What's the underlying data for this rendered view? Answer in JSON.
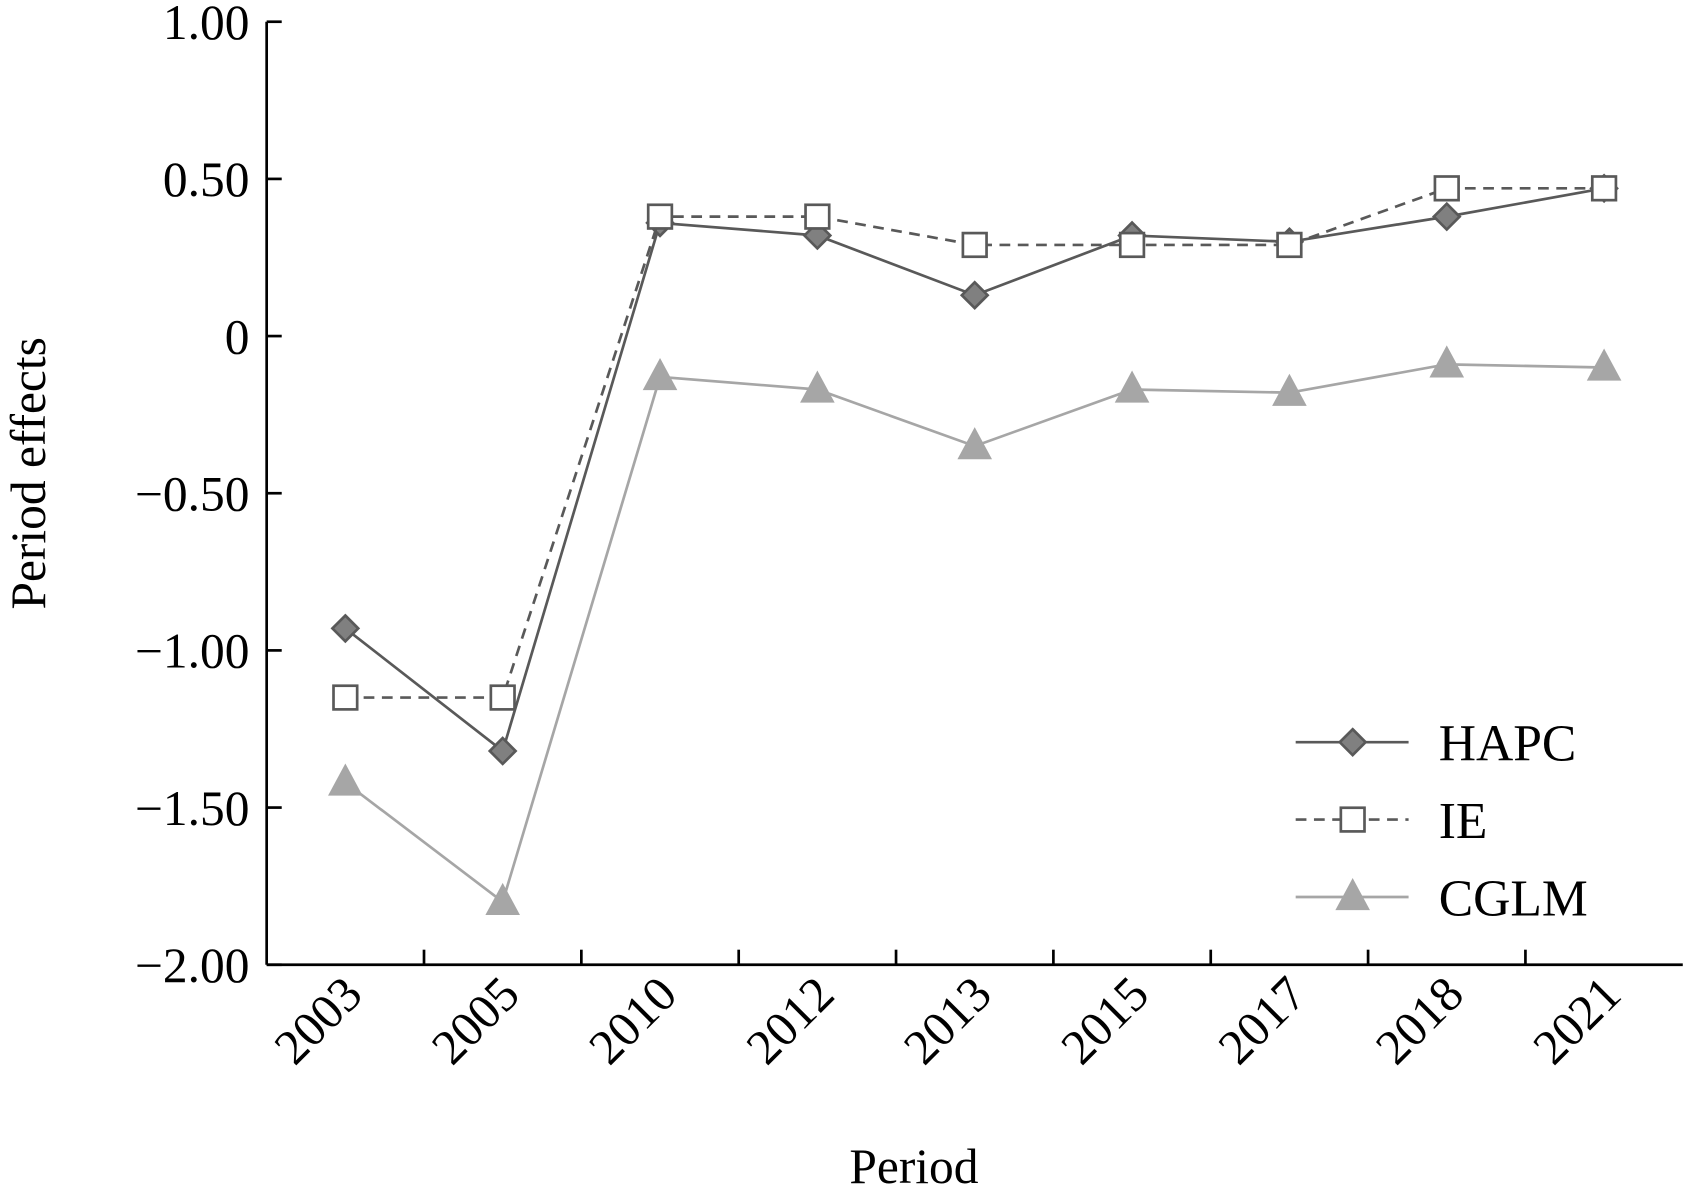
{
  "chart_data": {
    "type": "line",
    "title": "",
    "xlabel": "Period",
    "ylabel": "Period effects",
    "categories": [
      "2003",
      "2005",
      "2010",
      "2012",
      "2013",
      "2015",
      "2017",
      "2018",
      "2021"
    ],
    "ylim": [
      -2.0,
      1.0
    ],
    "yticks": [
      1.0,
      0.5,
      0,
      -0.5,
      -1.0,
      -1.5,
      -2.0
    ],
    "ytick_labels": [
      "1.00",
      "0.50",
      "0",
      "−0.50",
      "−1.00",
      "−1.50",
      "−2.00"
    ],
    "grid": false,
    "legend_position": "bottom-right",
    "series": [
      {
        "name": "HAPC",
        "marker": "diamond",
        "line": "solid",
        "color": "#595959",
        "fill": "#808080",
        "values": [
          -0.93,
          -1.32,
          0.36,
          0.32,
          0.13,
          0.32,
          0.3,
          0.38,
          0.47
        ]
      },
      {
        "name": "IE",
        "marker": "square-open",
        "line": "dashed",
        "color": "#595959",
        "fill": "#ffffff",
        "values": [
          -1.15,
          -1.15,
          0.38,
          0.38,
          0.29,
          0.29,
          0.29,
          0.47,
          0.47
        ]
      },
      {
        "name": "CGLM",
        "marker": "triangle",
        "line": "solid",
        "color": "#a6a6a6",
        "fill": "#a6a6a6",
        "values": [
          -1.42,
          -1.8,
          -0.13,
          -0.17,
          -0.35,
          -0.17,
          -0.18,
          -0.09,
          -0.1
        ]
      }
    ]
  }
}
